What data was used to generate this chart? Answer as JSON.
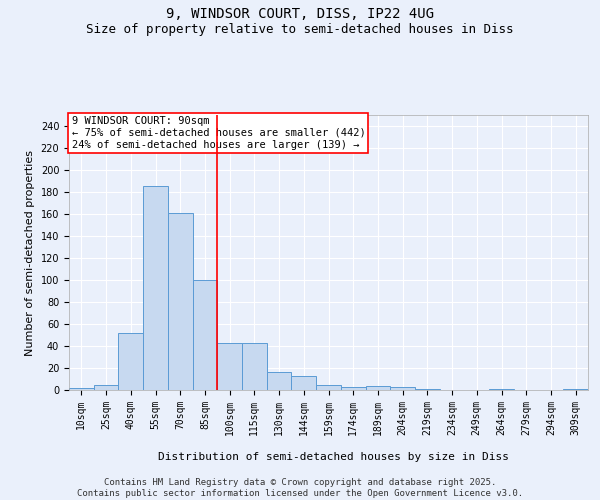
{
  "title": "9, WINDSOR COURT, DISS, IP22 4UG",
  "subtitle": "Size of property relative to semi-detached houses in Diss",
  "xlabel": "Distribution of semi-detached houses by size in Diss",
  "ylabel": "Number of semi-detached properties",
  "categories": [
    "10sqm",
    "25sqm",
    "40sqm",
    "55sqm",
    "70sqm",
    "85sqm",
    "100sqm",
    "115sqm",
    "130sqm",
    "144sqm",
    "159sqm",
    "174sqm",
    "189sqm",
    "204sqm",
    "219sqm",
    "234sqm",
    "249sqm",
    "264sqm",
    "279sqm",
    "294sqm",
    "309sqm"
  ],
  "values": [
    2,
    5,
    52,
    185,
    161,
    100,
    43,
    43,
    16,
    13,
    5,
    3,
    4,
    3,
    1,
    0,
    0,
    1,
    0,
    0,
    1
  ],
  "bar_color": "#c7d9f0",
  "bar_edge_color": "#5b9bd5",
  "vline_pos": 5.5,
  "vline_color": "red",
  "annotation_text": "9 WINDSOR COURT: 90sqm\n← 75% of semi-detached houses are smaller (442)\n24% of semi-detached houses are larger (139) →",
  "annotation_box_color": "white",
  "annotation_box_edge_color": "red",
  "ylim": [
    0,
    250
  ],
  "yticks": [
    0,
    20,
    40,
    60,
    80,
    100,
    120,
    140,
    160,
    180,
    200,
    220,
    240
  ],
  "bg_color": "#eaf0fb",
  "plot_bg_color": "#eaf0fb",
  "footer": "Contains HM Land Registry data © Crown copyright and database right 2025.\nContains public sector information licensed under the Open Government Licence v3.0.",
  "title_fontsize": 10,
  "subtitle_fontsize": 9,
  "xlabel_fontsize": 8,
  "ylabel_fontsize": 8,
  "tick_fontsize": 7,
  "annotation_fontsize": 7.5,
  "footer_fontsize": 6.5
}
